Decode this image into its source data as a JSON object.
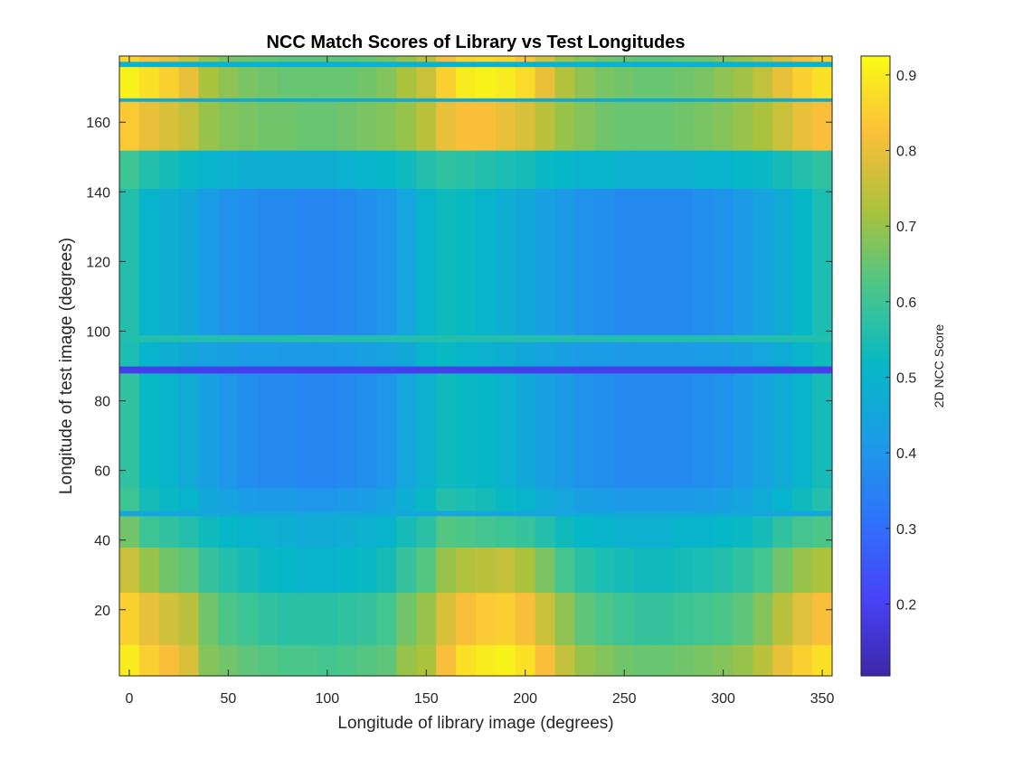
{
  "chart_data": {
    "type": "heatmap",
    "title": "NCC Match Scores of Library vs Test Longitudes",
    "xlabel": "Longitude of library image (degrees)",
    "ylabel": "Longitude of test image (degrees)",
    "colorbar_label": "2D NCC Score",
    "xlim": [
      0,
      350
    ],
    "ylim": [
      1,
      179
    ],
    "clim": [
      0.105,
      0.925
    ],
    "x_ticks": [
      0,
      50,
      100,
      150,
      200,
      250,
      300,
      350
    ],
    "y_ticks": [
      20,
      40,
      60,
      80,
      100,
      120,
      140,
      160
    ],
    "colorbar_ticks": [
      0.2,
      0.3,
      0.4,
      0.5,
      0.6,
      0.7,
      0.8,
      0.9
    ],
    "x_columns": [
      0,
      10,
      20,
      30,
      40,
      50,
      60,
      70,
      80,
      90,
      100,
      110,
      120,
      130,
      140,
      150,
      160,
      170,
      180,
      190,
      200,
      210,
      220,
      230,
      240,
      250,
      260,
      270,
      280,
      290,
      300,
      310,
      320,
      330,
      340,
      350
    ],
    "y_row_bands": [
      {
        "y_from": 1,
        "y_to": 10,
        "values": [
          0.9,
          0.85,
          0.82,
          0.78,
          0.68,
          0.66,
          0.64,
          0.63,
          0.62,
          0.62,
          0.61,
          0.62,
          0.63,
          0.64,
          0.7,
          0.72,
          0.82,
          0.88,
          0.9,
          0.91,
          0.88,
          0.82,
          0.75,
          0.7,
          0.68,
          0.66,
          0.65,
          0.65,
          0.66,
          0.67,
          0.68,
          0.7,
          0.74,
          0.8,
          0.85,
          0.88
        ]
      },
      {
        "y_from": 10,
        "y_to": 25,
        "values": [
          0.85,
          0.8,
          0.77,
          0.74,
          0.66,
          0.62,
          0.6,
          0.58,
          0.57,
          0.57,
          0.57,
          0.58,
          0.59,
          0.61,
          0.66,
          0.7,
          0.78,
          0.82,
          0.84,
          0.85,
          0.82,
          0.76,
          0.69,
          0.64,
          0.62,
          0.6,
          0.59,
          0.59,
          0.6,
          0.61,
          0.62,
          0.64,
          0.68,
          0.74,
          0.79,
          0.82
        ]
      },
      {
        "y_from": 25,
        "y_to": 38,
        "values": [
          0.76,
          0.7,
          0.66,
          0.64,
          0.59,
          0.56,
          0.54,
          0.52,
          0.51,
          0.5,
          0.5,
          0.51,
          0.52,
          0.54,
          0.59,
          0.63,
          0.7,
          0.73,
          0.74,
          0.75,
          0.72,
          0.67,
          0.61,
          0.57,
          0.55,
          0.54,
          0.53,
          0.53,
          0.54,
          0.55,
          0.56,
          0.58,
          0.61,
          0.66,
          0.7,
          0.72
        ]
      },
      {
        "y_from": 38,
        "y_to": 47,
        "values": [
          0.66,
          0.6,
          0.58,
          0.56,
          0.53,
          0.51,
          0.5,
          0.49,
          0.48,
          0.47,
          0.47,
          0.48,
          0.49,
          0.5,
          0.54,
          0.57,
          0.63,
          0.62,
          0.61,
          0.6,
          0.59,
          0.56,
          0.53,
          0.51,
          0.5,
          0.49,
          0.49,
          0.49,
          0.5,
          0.5,
          0.51,
          0.52,
          0.54,
          0.58,
          0.61,
          0.62
        ]
      },
      {
        "y_from": 47,
        "y_to": 48.5,
        "values": [
          0.45,
          0.45,
          0.45,
          0.45,
          0.45,
          0.45,
          0.45,
          0.45,
          0.45,
          0.45,
          0.45,
          0.45,
          0.45,
          0.45,
          0.45,
          0.45,
          0.45,
          0.45,
          0.45,
          0.45,
          0.45,
          0.45,
          0.45,
          0.45,
          0.45,
          0.45,
          0.45,
          0.45,
          0.45,
          0.45,
          0.45,
          0.45,
          0.45,
          0.45,
          0.45,
          0.45
        ]
      },
      {
        "y_from": 48.5,
        "y_to": 55,
        "values": [
          0.6,
          0.54,
          0.52,
          0.5,
          0.46,
          0.44,
          0.42,
          0.41,
          0.41,
          0.4,
          0.4,
          0.41,
          0.42,
          0.44,
          0.48,
          0.52,
          0.56,
          0.55,
          0.54,
          0.52,
          0.5,
          0.47,
          0.45,
          0.43,
          0.42,
          0.41,
          0.41,
          0.41,
          0.41,
          0.42,
          0.43,
          0.44,
          0.47,
          0.5,
          0.53,
          0.56
        ]
      },
      {
        "y_from": 55,
        "y_to": 88,
        "values": [
          0.58,
          0.52,
          0.5,
          0.47,
          0.43,
          0.4,
          0.38,
          0.37,
          0.37,
          0.36,
          0.36,
          0.37,
          0.38,
          0.4,
          0.45,
          0.49,
          0.53,
          0.52,
          0.51,
          0.49,
          0.46,
          0.43,
          0.41,
          0.39,
          0.38,
          0.37,
          0.37,
          0.37,
          0.37,
          0.38,
          0.39,
          0.41,
          0.44,
          0.47,
          0.5,
          0.54
        ]
      },
      {
        "y_from": 88,
        "y_to": 90,
        "values": [
          0.19,
          0.19,
          0.19,
          0.19,
          0.19,
          0.19,
          0.19,
          0.19,
          0.19,
          0.19,
          0.19,
          0.19,
          0.19,
          0.19,
          0.19,
          0.19,
          0.19,
          0.19,
          0.19,
          0.19,
          0.19,
          0.19,
          0.19,
          0.19,
          0.19,
          0.19,
          0.19,
          0.19,
          0.19,
          0.19,
          0.19,
          0.19,
          0.19,
          0.19,
          0.19,
          0.19
        ]
      },
      {
        "y_from": 90,
        "y_to": 97,
        "values": [
          0.55,
          0.5,
          0.48,
          0.46,
          0.44,
          0.43,
          0.42,
          0.42,
          0.41,
          0.41,
          0.41,
          0.42,
          0.43,
          0.44,
          0.46,
          0.5,
          0.52,
          0.5,
          0.49,
          0.48,
          0.46,
          0.44,
          0.43,
          0.42,
          0.42,
          0.41,
          0.41,
          0.41,
          0.41,
          0.42,
          0.42,
          0.43,
          0.45,
          0.47,
          0.5,
          0.53
        ]
      },
      {
        "y_from": 97,
        "y_to": 99,
        "values": [
          0.56,
          0.56,
          0.56,
          0.56,
          0.56,
          0.56,
          0.56,
          0.56,
          0.56,
          0.56,
          0.56,
          0.56,
          0.56,
          0.56,
          0.56,
          0.56,
          0.56,
          0.56,
          0.56,
          0.56,
          0.56,
          0.56,
          0.56,
          0.56,
          0.56,
          0.56,
          0.56,
          0.56,
          0.56,
          0.56,
          0.56,
          0.56,
          0.56,
          0.56,
          0.56,
          0.56
        ]
      },
      {
        "y_from": 99,
        "y_to": 141,
        "values": [
          0.56,
          0.5,
          0.48,
          0.46,
          0.42,
          0.39,
          0.38,
          0.37,
          0.37,
          0.36,
          0.36,
          0.37,
          0.38,
          0.4,
          0.45,
          0.5,
          0.53,
          0.52,
          0.5,
          0.48,
          0.46,
          0.43,
          0.41,
          0.39,
          0.38,
          0.37,
          0.37,
          0.37,
          0.37,
          0.38,
          0.39,
          0.41,
          0.44,
          0.47,
          0.51,
          0.55
        ]
      },
      {
        "y_from": 141,
        "y_to": 152,
        "values": [
          0.6,
          0.56,
          0.54,
          0.52,
          0.5,
          0.49,
          0.48,
          0.48,
          0.48,
          0.48,
          0.48,
          0.49,
          0.5,
          0.51,
          0.53,
          0.56,
          0.58,
          0.57,
          0.56,
          0.55,
          0.54,
          0.52,
          0.51,
          0.5,
          0.5,
          0.49,
          0.49,
          0.49,
          0.49,
          0.5,
          0.5,
          0.51,
          0.52,
          0.54,
          0.56,
          0.58
        ]
      },
      {
        "y_from": 152,
        "y_to": 166,
        "values": [
          0.84,
          0.8,
          0.78,
          0.75,
          0.7,
          0.68,
          0.67,
          0.66,
          0.66,
          0.65,
          0.65,
          0.66,
          0.67,
          0.68,
          0.7,
          0.74,
          0.8,
          0.82,
          0.82,
          0.8,
          0.78,
          0.74,
          0.7,
          0.68,
          0.66,
          0.65,
          0.65,
          0.65,
          0.66,
          0.67,
          0.68,
          0.7,
          0.72,
          0.76,
          0.8,
          0.82
        ]
      },
      {
        "y_from": 166,
        "y_to": 167,
        "values": [
          0.47,
          0.47,
          0.47,
          0.47,
          0.47,
          0.47,
          0.47,
          0.47,
          0.47,
          0.47,
          0.47,
          0.47,
          0.47,
          0.47,
          0.47,
          0.47,
          0.47,
          0.47,
          0.47,
          0.47,
          0.47,
          0.47,
          0.47,
          0.47,
          0.47,
          0.47,
          0.47,
          0.47,
          0.47,
          0.47,
          0.47,
          0.47,
          0.47,
          0.47,
          0.47,
          0.47
        ]
      },
      {
        "y_from": 167,
        "y_to": 176,
        "values": [
          0.91,
          0.88,
          0.85,
          0.8,
          0.72,
          0.69,
          0.67,
          0.66,
          0.65,
          0.65,
          0.65,
          0.65,
          0.66,
          0.68,
          0.72,
          0.76,
          0.85,
          0.9,
          0.91,
          0.9,
          0.87,
          0.8,
          0.73,
          0.69,
          0.67,
          0.66,
          0.65,
          0.65,
          0.66,
          0.67,
          0.69,
          0.71,
          0.75,
          0.8,
          0.85,
          0.88
        ]
      },
      {
        "y_from": 176,
        "y_to": 177.5,
        "values": [
          0.49,
          0.49,
          0.49,
          0.49,
          0.49,
          0.49,
          0.49,
          0.49,
          0.49,
          0.49,
          0.49,
          0.49,
          0.49,
          0.49,
          0.49,
          0.49,
          0.49,
          0.49,
          0.49,
          0.49,
          0.49,
          0.49,
          0.49,
          0.49,
          0.49,
          0.49,
          0.49,
          0.49,
          0.49,
          0.49,
          0.49,
          0.49,
          0.49,
          0.49,
          0.49,
          0.49
        ]
      },
      {
        "y_from": 177.5,
        "y_to": 179,
        "values": [
          0.86,
          0.83,
          0.8,
          0.76,
          0.7,
          0.67,
          0.66,
          0.65,
          0.64,
          0.64,
          0.64,
          0.64,
          0.65,
          0.67,
          0.7,
          0.74,
          0.82,
          0.86,
          0.87,
          0.86,
          0.83,
          0.77,
          0.71,
          0.68,
          0.66,
          0.65,
          0.64,
          0.64,
          0.65,
          0.66,
          0.68,
          0.7,
          0.73,
          0.78,
          0.82,
          0.85
        ]
      }
    ]
  }
}
